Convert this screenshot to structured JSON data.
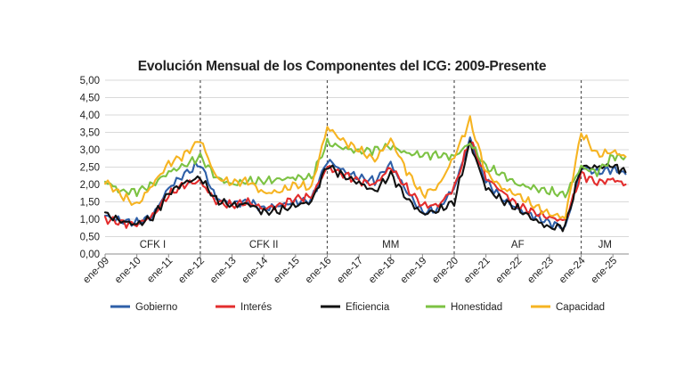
{
  "chart_data": {
    "type": "line",
    "title": "Evolución Mensual de los Componentes del ICG: 2009-Presente",
    "xlabel": "",
    "ylabel": "",
    "ylim": [
      0,
      5
    ],
    "yticks": [
      "0,00",
      "0,50",
      "1,00",
      "1,50",
      "2,00",
      "2,50",
      "3,00",
      "3,50",
      "4,00",
      "4,50",
      "5,00"
    ],
    "xticks": [
      "ene-09",
      "ene-10",
      "ene-11",
      "ene-12",
      "ene-13",
      "ene-14",
      "ene-15",
      "ene-16",
      "ene-17",
      "ene-18",
      "ene-19",
      "ene-20",
      "ene-21",
      "ene-22",
      "ene-23",
      "ene-24",
      "ene-25"
    ],
    "x_range": [
      2009.0,
      2025.5
    ],
    "grid": "horizontal",
    "legend_position": "bottom",
    "periods": [
      {
        "label": "CFK I",
        "start": 2009.0,
        "end": 2012.0
      },
      {
        "label": "CFK II",
        "start": 2012.0,
        "end": 2016.0
      },
      {
        "label": "MM",
        "start": 2016.0,
        "end": 2020.0
      },
      {
        "label": "AF",
        "start": 2020.0,
        "end": 2024.0
      },
      {
        "label": "JM",
        "start": 2024.0,
        "end": 2025.5
      }
    ],
    "x": [
      2009.0,
      2009.5,
      2010.0,
      2010.5,
      2011.0,
      2011.5,
      2012.0,
      2012.5,
      2013.0,
      2013.5,
      2014.0,
      2014.5,
      2015.0,
      2015.5,
      2016.0,
      2016.5,
      2017.0,
      2017.5,
      2018.0,
      2018.5,
      2019.0,
      2019.5,
      2020.0,
      2020.5,
      2021.0,
      2021.5,
      2022.0,
      2022.5,
      2023.0,
      2023.5,
      2024.0,
      2024.5,
      2025.0,
      2025.4
    ],
    "series": [
      {
        "name": "Gobierno",
        "color": "#2e5fa8",
        "values": [
          1.1,
          0.95,
          0.9,
          1.1,
          1.9,
          2.3,
          2.6,
          1.6,
          1.45,
          1.5,
          1.3,
          1.4,
          1.5,
          1.55,
          2.7,
          2.4,
          2.2,
          2.1,
          2.6,
          1.8,
          1.2,
          1.3,
          1.9,
          3.3,
          2.1,
          1.6,
          1.3,
          1.1,
          0.9,
          0.75,
          2.5,
          2.35,
          2.45,
          2.3
        ]
      },
      {
        "name": "Interés",
        "color": "#e32d2d",
        "values": [
          1.0,
          0.9,
          0.85,
          1.1,
          1.7,
          2.0,
          2.1,
          1.5,
          1.4,
          1.5,
          1.3,
          1.4,
          1.6,
          1.65,
          2.5,
          2.3,
          2.1,
          2.0,
          2.5,
          1.9,
          1.4,
          1.4,
          1.9,
          3.3,
          2.2,
          1.8,
          1.4,
          1.2,
          1.05,
          0.95,
          2.3,
          2.05,
          2.15,
          2.0
        ]
      },
      {
        "name": "Eficiencia",
        "color": "#111111",
        "values": [
          1.15,
          0.95,
          0.85,
          1.05,
          1.75,
          2.05,
          2.2,
          1.55,
          1.4,
          1.45,
          1.2,
          1.25,
          1.4,
          1.5,
          2.55,
          2.25,
          2.05,
          1.8,
          2.3,
          1.6,
          1.15,
          1.25,
          1.5,
          3.2,
          1.9,
          1.55,
          1.3,
          1.0,
          0.75,
          0.8,
          2.5,
          2.5,
          2.55,
          2.35
        ]
      },
      {
        "name": "Honestidad",
        "color": "#7cc243",
        "values": [
          2.1,
          1.8,
          1.8,
          2.0,
          2.35,
          2.55,
          2.8,
          2.2,
          2.0,
          2.1,
          2.1,
          2.15,
          2.2,
          2.2,
          3.2,
          3.05,
          2.95,
          3.0,
          3.1,
          2.9,
          2.85,
          2.85,
          2.8,
          3.2,
          2.5,
          2.3,
          2.0,
          1.9,
          1.8,
          1.7,
          2.5,
          2.35,
          2.8,
          2.8
        ]
      },
      {
        "name": "Capacidad",
        "color": "#f6b422",
        "values": [
          2.1,
          1.7,
          1.4,
          2.0,
          2.6,
          2.85,
          3.3,
          2.2,
          2.05,
          2.1,
          1.75,
          1.8,
          2.0,
          1.9,
          3.65,
          3.25,
          3.0,
          2.7,
          3.3,
          2.4,
          1.7,
          1.95,
          2.8,
          3.85,
          2.35,
          1.9,
          1.7,
          1.4,
          1.15,
          1.05,
          3.5,
          2.85,
          2.95,
          2.8
        ]
      }
    ]
  }
}
